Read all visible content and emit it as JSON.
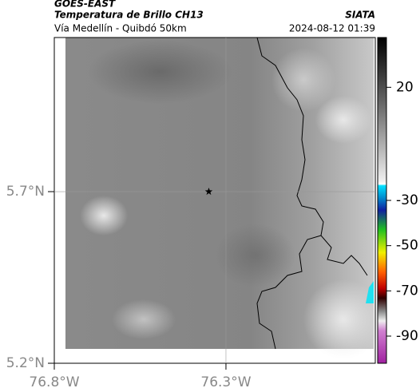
{
  "header": {
    "satellite": "GOES-EAST",
    "product": "Temperatura de Brillo CH13",
    "region": "Vía Medellín - Quibdó 50km",
    "source": "SIATA",
    "timestamp": "2024-08-12 01:39"
  },
  "map": {
    "lonlim": [
      -76.8,
      -75.865
    ],
    "latlim": [
      5.2,
      6.149
    ],
    "lat_ticks": [
      {
        "value": 5.7,
        "label": "5.7°N"
      },
      {
        "value": 5.2,
        "label": "5.2°N"
      }
    ],
    "lon_ticks": [
      {
        "value": -76.8,
        "label": "76.8°W"
      },
      {
        "value": -76.3,
        "label": "76.3°W"
      }
    ],
    "grid": true,
    "point": {
      "lon": -76.35,
      "lat": 5.7
    }
  },
  "colorbar": {
    "lim": [
      42,
      -102
    ],
    "ticks": [
      20,
      -30,
      -50,
      -70,
      -90
    ]
  }
}
